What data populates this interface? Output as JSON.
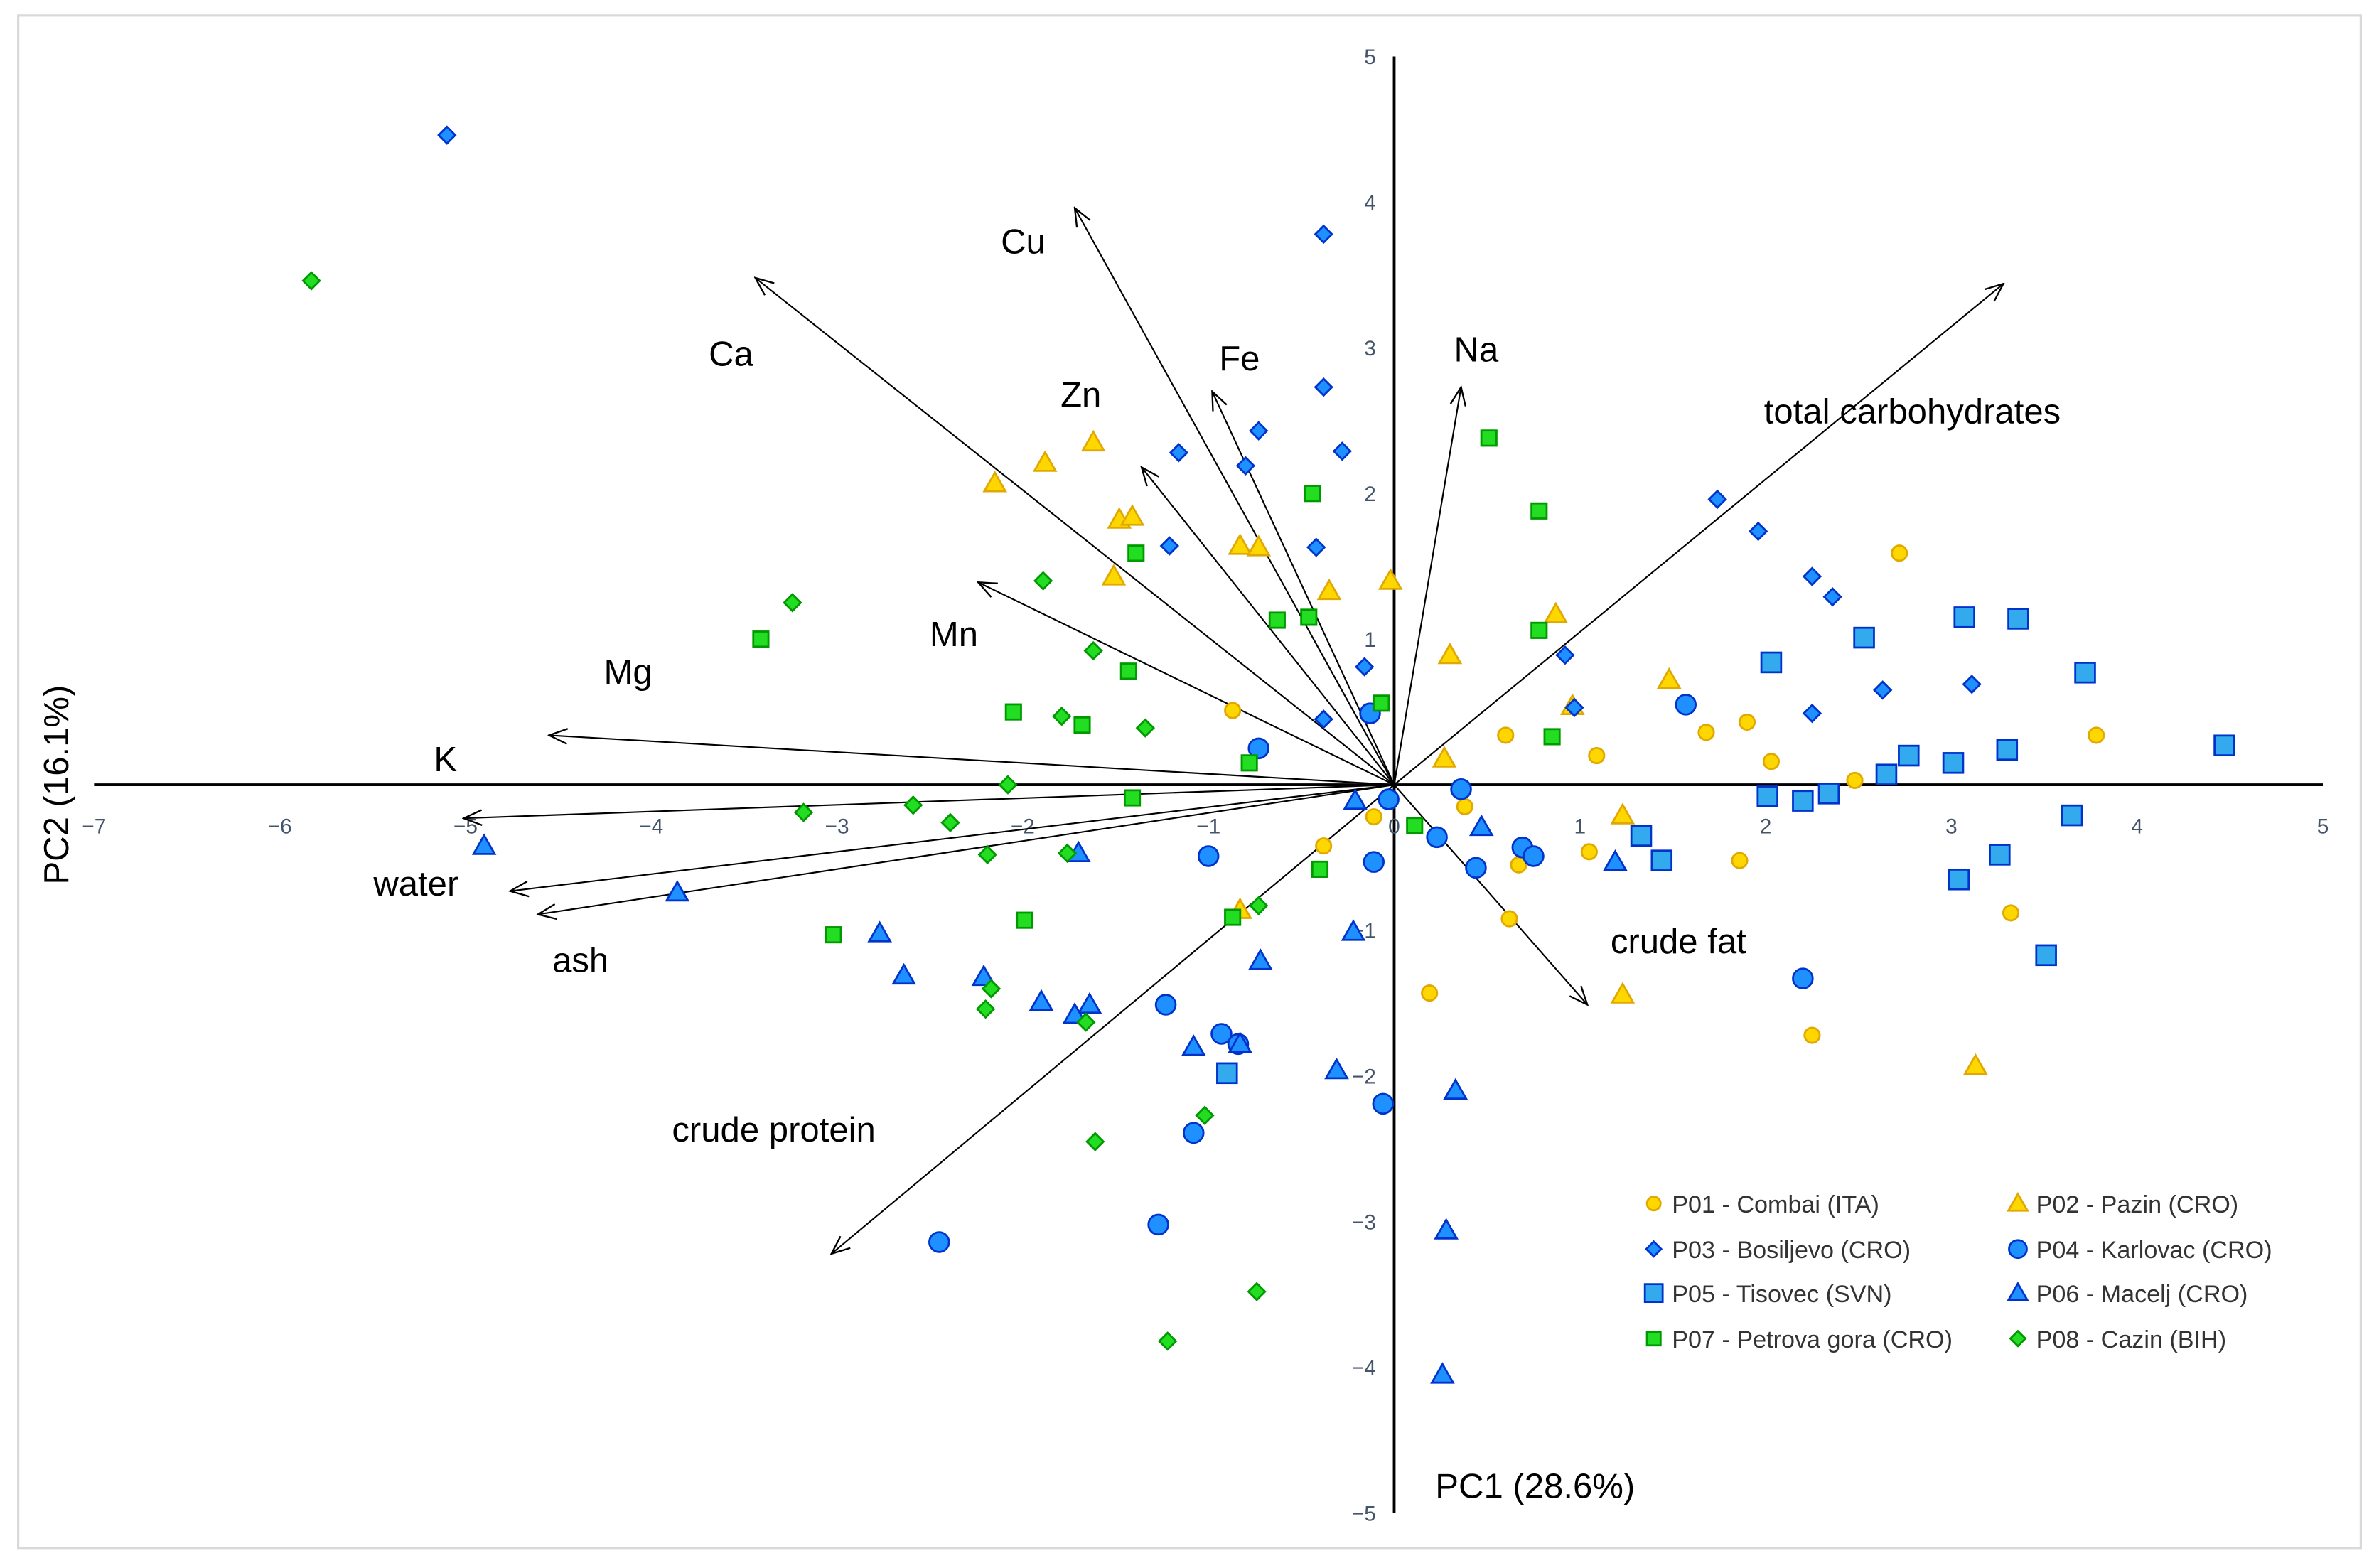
{
  "chart_data": {
    "type": "scatter",
    "subtype": "pca-biplot",
    "xlabel": "PC1 (28.6%)",
    "ylabel": "PC2 (16.1%)",
    "xlim": [
      -7,
      5
    ],
    "ylim": [
      -5,
      5
    ],
    "xticks": [
      -7,
      -6,
      -5,
      -4,
      -3,
      -2,
      -1,
      0,
      1,
      2,
      3,
      4,
      5
    ],
    "yticks": [
      -5,
      -4,
      -3,
      -2,
      -1,
      0,
      1,
      2,
      3,
      4,
      5
    ],
    "grid": false,
    "legend_position": "bottom-right",
    "series": [
      {
        "name": "P01 - Combai (ITA)",
        "marker": "circle-small",
        "fill": "#FFD700",
        "stroke": "#E0A800",
        "points": [
          [
            -0.87,
            0.51
          ],
          [
            0.6,
            0.34
          ],
          [
            1.09,
            0.2
          ],
          [
            1.68,
            0.36
          ],
          [
            1.9,
            0.43
          ],
          [
            2.03,
            0.16
          ],
          [
            2.72,
            1.59
          ],
          [
            3.78,
            0.34
          ],
          [
            2.48,
            0.03
          ],
          [
            0.38,
            -0.15
          ],
          [
            -0.11,
            -0.22
          ],
          [
            -0.38,
            -0.42
          ],
          [
            0.67,
            -0.55
          ],
          [
            1.05,
            -0.46
          ],
          [
            1.86,
            -0.52
          ],
          [
            0.62,
            -0.92
          ],
          [
            3.32,
            -0.88
          ],
          [
            0.19,
            -1.43
          ],
          [
            2.25,
            -1.72
          ]
        ]
      },
      {
        "name": "P02 - Pazin (CRO)",
        "marker": "triangle",
        "fill": "#FFD700",
        "stroke": "#E0A800",
        "points": [
          [
            -2.15,
            2.07
          ],
          [
            -1.88,
            2.21
          ],
          [
            -1.62,
            2.35
          ],
          [
            -1.48,
            1.82
          ],
          [
            -1.41,
            1.84
          ],
          [
            -1.51,
            1.43
          ],
          [
            -0.83,
            1.64
          ],
          [
            -0.73,
            1.63
          ],
          [
            -0.35,
            1.33
          ],
          [
            -0.02,
            1.4
          ],
          [
            0.3,
            0.89
          ],
          [
            0.87,
            1.17
          ],
          [
            1.48,
            0.72
          ],
          [
            0.27,
            0.18
          ],
          [
            0.96,
            0.54
          ],
          [
            1.23,
            -0.21
          ],
          [
            1.23,
            -1.44
          ],
          [
            3.13,
            -1.93
          ],
          [
            -0.83,
            -0.86
          ]
        ]
      },
      {
        "name": "P03 - Bosiljevo (CRO)",
        "marker": "diamond",
        "fill": "#1E90FF",
        "stroke": "#0033CC",
        "points": [
          [
            -5.1,
            4.46
          ],
          [
            -0.38,
            3.78
          ],
          [
            -0.38,
            2.73
          ],
          [
            -0.73,
            2.43
          ],
          [
            -1.16,
            2.28
          ],
          [
            -0.8,
            2.19
          ],
          [
            -0.28,
            2.29
          ],
          [
            -1.21,
            1.64
          ],
          [
            -0.42,
            1.63
          ],
          [
            1.74,
            1.96
          ],
          [
            1.96,
            1.74
          ],
          [
            2.25,
            1.43
          ],
          [
            2.36,
            1.29
          ],
          [
            -0.16,
            0.81
          ],
          [
            0.92,
            0.89
          ],
          [
            0.97,
            0.53
          ],
          [
            -0.38,
            0.45
          ],
          [
            2.25,
            0.49
          ],
          [
            2.63,
            0.65
          ],
          [
            3.11,
            0.69
          ]
        ]
      },
      {
        "name": "P04 - Karlovac (CRO)",
        "marker": "circle",
        "fill": "#1E90FF",
        "stroke": "#0033CC",
        "points": [
          [
            -0.13,
            0.49
          ],
          [
            -0.73,
            0.25
          ],
          [
            0.36,
            -0.03
          ],
          [
            -0.03,
            -0.1
          ],
          [
            0.23,
            -0.36
          ],
          [
            -0.11,
            -0.53
          ],
          [
            0.44,
            -0.57
          ],
          [
            0.69,
            -0.43
          ],
          [
            0.75,
            -0.49
          ],
          [
            1.57,
            0.55
          ],
          [
            -1.0,
            -0.49
          ],
          [
            -1.23,
            -1.51
          ],
          [
            -0.93,
            -1.71
          ],
          [
            -0.84,
            -1.78
          ],
          [
            -1.08,
            -2.39
          ],
          [
            -1.27,
            -3.02
          ],
          [
            -2.45,
            -3.14
          ],
          [
            -0.06,
            -2.19
          ],
          [
            2.2,
            -1.33
          ]
        ]
      },
      {
        "name": "P05 - Tisovec (SVN)",
        "marker": "square",
        "fill": "#33AAEE",
        "stroke": "#0033CC",
        "points": [
          [
            3.07,
            1.15
          ],
          [
            3.36,
            1.14
          ],
          [
            2.53,
            1.01
          ],
          [
            2.03,
            0.84
          ],
          [
            3.72,
            0.77
          ],
          [
            2.77,
            0.2
          ],
          [
            3.01,
            0.15
          ],
          [
            3.3,
            0.24
          ],
          [
            4.47,
            0.27
          ],
          [
            2.65,
            0.07
          ],
          [
            2.01,
            -0.08
          ],
          [
            2.2,
            -0.11
          ],
          [
            2.34,
            -0.06
          ],
          [
            1.33,
            -0.35
          ],
          [
            1.44,
            -0.52
          ],
          [
            3.65,
            -0.21
          ],
          [
            3.26,
            -0.48
          ],
          [
            3.04,
            -0.65
          ],
          [
            3.51,
            -1.17
          ],
          [
            -0.9,
            -1.98
          ]
        ]
      },
      {
        "name": "P06 - Macelj (CRO)",
        "marker": "triangle",
        "fill": "#1E90FF",
        "stroke": "#0033CC",
        "points": [
          [
            -4.9,
            -0.42
          ],
          [
            -3.86,
            -0.74
          ],
          [
            -2.77,
            -1.02
          ],
          [
            -2.64,
            -1.31
          ],
          [
            -2.21,
            -1.32
          ],
          [
            -1.9,
            -1.49
          ],
          [
            -1.64,
            -1.51
          ],
          [
            -1.72,
            -1.58
          ],
          [
            -1.7,
            -0.47
          ],
          [
            -1.08,
            -1.8
          ],
          [
            -0.83,
            -1.78
          ],
          [
            -0.72,
            -1.21
          ],
          [
            -0.22,
            -1.01
          ],
          [
            -0.21,
            -0.11
          ],
          [
            -0.31,
            -1.96
          ],
          [
            0.47,
            -0.29
          ],
          [
            1.19,
            -0.53
          ],
          [
            0.33,
            -2.1
          ],
          [
            0.28,
            -3.06
          ],
          [
            0.26,
            -4.05
          ]
        ]
      },
      {
        "name": "P07 - Petrova gora (CRO)",
        "marker": "square-small",
        "fill": "#22DD22",
        "stroke": "#009900",
        "points": [
          [
            -3.41,
            1.0
          ],
          [
            -3.02,
            -1.03
          ],
          [
            -2.05,
            0.5
          ],
          [
            -1.68,
            0.41
          ],
          [
            -1.99,
            -0.93
          ],
          [
            -1.43,
            0.78
          ],
          [
            -1.39,
            1.59
          ],
          [
            -1.41,
            -0.09
          ],
          [
            -0.63,
            1.13
          ],
          [
            -0.44,
            2.0
          ],
          [
            -0.46,
            1.15
          ],
          [
            -0.07,
            0.56
          ],
          [
            -0.78,
            0.15
          ],
          [
            -0.87,
            -0.91
          ],
          [
            -0.4,
            -0.58
          ],
          [
            0.11,
            -0.28
          ],
          [
            0.51,
            2.38
          ],
          [
            0.78,
            1.88
          ],
          [
            0.78,
            1.06
          ],
          [
            0.85,
            0.33
          ]
        ]
      },
      {
        "name": "P08 - Cazin (BIH)",
        "marker": "diamond",
        "fill": "#22DD22",
        "stroke": "#009900",
        "points": [
          [
            -5.83,
            3.46
          ],
          [
            -3.24,
            1.25
          ],
          [
            -1.89,
            1.4
          ],
          [
            -1.62,
            0.92
          ],
          [
            -1.79,
            0.47
          ],
          [
            -1.34,
            0.39
          ],
          [
            -2.08,
            0.0
          ],
          [
            -2.59,
            -0.14
          ],
          [
            -3.18,
            -0.19
          ],
          [
            -2.39,
            -0.26
          ],
          [
            -2.19,
            -0.48
          ],
          [
            -1.76,
            -0.47
          ],
          [
            -2.17,
            -1.4
          ],
          [
            -2.2,
            -1.54
          ],
          [
            -1.66,
            -1.63
          ],
          [
            -0.73,
            -0.83
          ],
          [
            -1.02,
            -2.27
          ],
          [
            -1.61,
            -2.45
          ],
          [
            -0.74,
            -3.48
          ],
          [
            -1.22,
            -3.82
          ]
        ]
      }
    ],
    "loadings": [
      {
        "label": "Cu",
        "x": -1.72,
        "y": 3.96
      },
      {
        "label": "Ca",
        "x": -3.44,
        "y": 3.48
      },
      {
        "label": "Zn",
        "x": -1.36,
        "y": 2.18
      },
      {
        "label": "Fe",
        "x": -0.98,
        "y": 2.7
      },
      {
        "label": "Na",
        "x": 0.36,
        "y": 2.73
      },
      {
        "label": "total carbohydrates",
        "x": 3.28,
        "y": 3.44
      },
      {
        "label": "Mn",
        "x": -2.24,
        "y": 1.39
      },
      {
        "label": "Mg",
        "x": -4.55,
        "y": 0.34
      },
      {
        "label": "K",
        "x": -5.01,
        "y": -0.23
      },
      {
        "label": "water",
        "x": -4.76,
        "y": -0.73
      },
      {
        "label": "ash",
        "x": -4.61,
        "y": -0.89
      },
      {
        "label": "crude fat",
        "x": 1.04,
        "y": -1.51
      },
      {
        "label": "crude protein",
        "x": -3.03,
        "y": -3.22
      }
    ]
  }
}
